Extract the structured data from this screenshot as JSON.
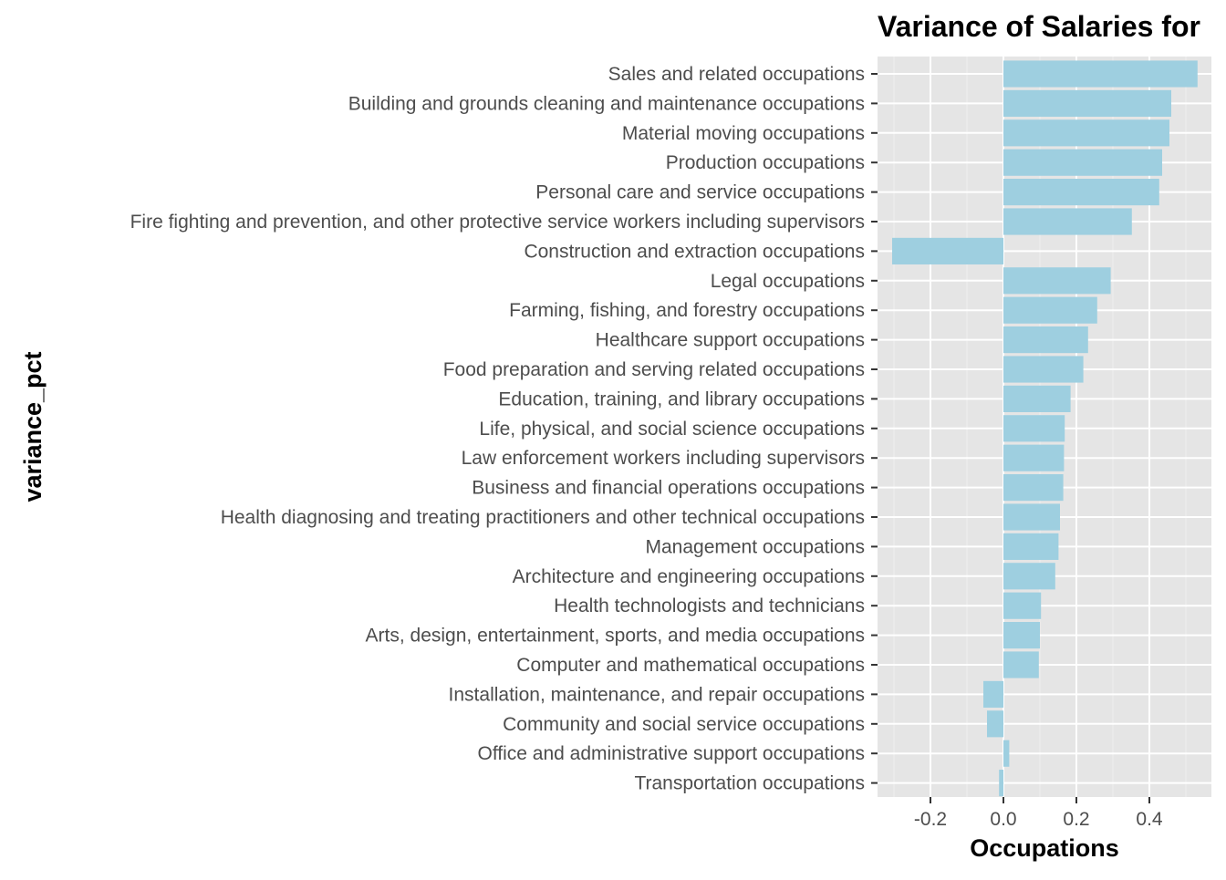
{
  "chart_data": {
    "type": "bar",
    "orientation": "horizontal",
    "title": "Variance of Salaries for",
    "xlabel": "Occupations",
    "ylabel": "variance_pct",
    "xlim": [
      -0.345,
      0.57
    ],
    "x_ticks": [
      -0.2,
      0.0,
      0.2,
      0.4
    ],
    "x_tick_labels": [
      "-0.2",
      "0.0",
      "0.2",
      "0.4"
    ],
    "grid": true,
    "legend": "none",
    "categories": [
      "Sales and related occupations",
      "Building and grounds cleaning and maintenance occupations",
      "Material moving occupations",
      "Production occupations",
      "Personal care and service occupations",
      "Fire fighting and prevention, and other protective service workers including supervisors",
      "Construction and extraction occupations",
      "Legal occupations",
      "Farming, fishing, and forestry occupations",
      "Healthcare support occupations",
      "Food preparation and serving related occupations",
      "Education, training, and library occupations",
      "Life, physical, and social science occupations",
      "Law enforcement workers including supervisors",
      "Business and financial operations occupations",
      "Health diagnosing and treating practitioners and other technical occupations",
      "Management occupations",
      "Architecture and engineering occupations",
      "Health technologists and technicians",
      "Arts, design, entertainment, sports, and media occupations",
      "Computer and mathematical occupations",
      "Installation, maintenance, and repair occupations",
      "Community and social service occupations",
      "Office and administrative support occupations",
      "Transportation occupations"
    ],
    "values": [
      0.532,
      0.46,
      0.455,
      0.435,
      0.427,
      0.352,
      -0.305,
      0.294,
      0.257,
      0.232,
      0.219,
      0.184,
      0.168,
      0.166,
      0.164,
      0.155,
      0.151,
      0.142,
      0.103,
      0.1,
      0.097,
      -0.055,
      -0.045,
      0.016,
      -0.012
    ],
    "colors": {
      "bar": "#9ecfe0",
      "panel": "#e5e5e5",
      "grid_major": "#ffffff",
      "grid_minor": "#f0f0f0",
      "tick_text": "#4d4d4d",
      "title_text": "#000000"
    }
  }
}
